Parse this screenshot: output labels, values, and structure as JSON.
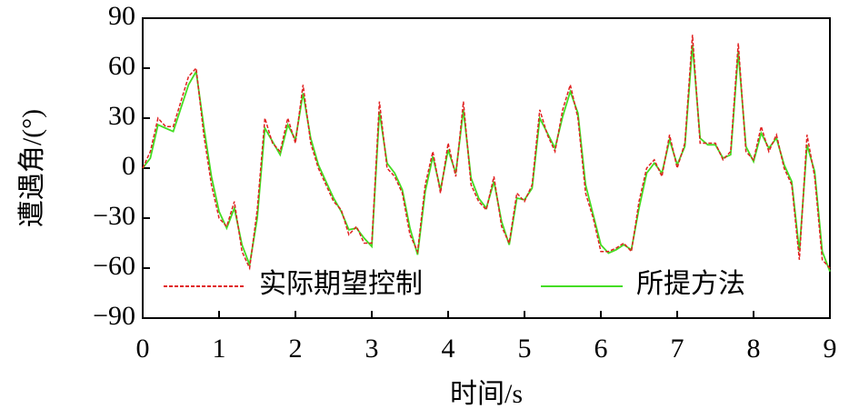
{
  "chart_data": {
    "type": "line",
    "xlabel": "时间/s",
    "ylabel": "遭遇角/(°)",
    "xlim": [
      0,
      9
    ],
    "xticks": [
      0,
      1,
      2,
      3,
      4,
      5,
      6,
      7,
      8,
      9
    ],
    "ylim": [
      -90,
      90
    ],
    "yticks": [
      {
        "value": -90,
        "label": "−90"
      },
      {
        "value": -60,
        "label": "−60"
      },
      {
        "value": -30,
        "label": "−30"
      },
      0,
      30,
      60,
      90
    ],
    "legend": "lower center",
    "x": [
      0,
      0.1,
      0.2,
      0.3,
      0.4,
      0.5,
      0.6,
      0.7,
      0.8,
      0.9,
      1,
      1.1,
      1.2,
      1.3,
      1.4,
      1.5,
      1.6,
      1.7,
      1.8,
      1.9,
      2,
      2.1,
      2.2,
      2.3,
      2.4,
      2.5,
      2.6,
      2.7,
      2.8,
      2.9,
      3,
      3.1,
      3.2,
      3.3,
      3.4,
      3.5,
      3.6,
      3.7,
      3.8,
      3.9,
      4,
      4.1,
      4.2,
      4.3,
      4.4,
      4.5,
      4.6,
      4.7,
      4.8,
      4.9,
      5,
      5.1,
      5.2,
      5.3,
      5.4,
      5.5,
      5.6,
      5.7,
      5.8,
      5.9,
      6,
      6.1,
      6.2,
      6.3,
      6.4,
      6.5,
      6.6,
      6.7,
      6.8,
      6.9,
      7,
      7.1,
      7.2,
      7.3,
      7.4,
      7.5,
      7.6,
      7.7,
      7.8,
      7.9,
      8,
      8.1,
      8.2,
      8.3,
      8.4,
      8.5,
      8.6,
      8.7,
      8.8,
      8.9,
      9
    ],
    "series": [
      {
        "name": "实际期望控制",
        "color": "#e02020",
        "style": "dashed",
        "values": [
          0,
          10,
          30,
          25,
          25,
          40,
          55,
          60,
          20,
          -10,
          -30,
          -35,
          -20,
          -50,
          -60,
          -25,
          30,
          15,
          10,
          30,
          15,
          50,
          15,
          0,
          -10,
          -20,
          -25,
          -40,
          -35,
          -45,
          -45,
          40,
          0,
          -5,
          -15,
          -40,
          -50,
          -10,
          10,
          -15,
          15,
          -5,
          40,
          -10,
          -20,
          -25,
          -5,
          -35,
          -45,
          -15,
          -20,
          -10,
          35,
          20,
          10,
          35,
          50,
          30,
          -15,
          -30,
          -50,
          -50,
          -48,
          -45,
          -50,
          -20,
          0,
          5,
          -5,
          20,
          0,
          15,
          80,
          15,
          15,
          15,
          5,
          10,
          75,
          10,
          5,
          25,
          10,
          20,
          0,
          -10,
          -55,
          20,
          -5,
          -55,
          -60
        ]
      },
      {
        "name": "所提方法",
        "color": "#44dd22",
        "style": "solid",
        "values": [
          0,
          6,
          26,
          24,
          22,
          36,
          50,
          58,
          25,
          -5,
          -26,
          -36,
          -24,
          -46,
          -58,
          -30,
          24,
          16,
          8,
          26,
          17,
          45,
          18,
          2,
          -8,
          -18,
          -26,
          -37,
          -36,
          -42,
          -47,
          34,
          3,
          -3,
          -13,
          -36,
          -52,
          -14,
          7,
          -13,
          11,
          -3,
          35,
          -6,
          -18,
          -24,
          -8,
          -32,
          -46,
          -18,
          -19,
          -12,
          30,
          21,
          12,
          31,
          46,
          33,
          -10,
          -28,
          -46,
          -51,
          -49,
          -46,
          -49,
          -24,
          -3,
          3,
          -3,
          17,
          2,
          13,
          74,
          18,
          14,
          14,
          6,
          8,
          70,
          13,
          4,
          21,
          12,
          18,
          2,
          -8,
          -50,
          14,
          -2,
          -50,
          -62
        ]
      }
    ]
  }
}
